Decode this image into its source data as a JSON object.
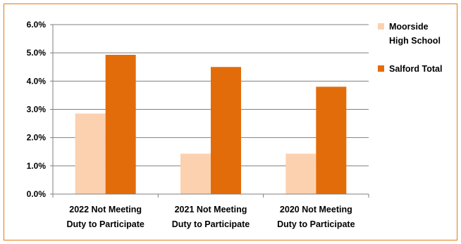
{
  "chart_data": {
    "type": "bar",
    "categories": [
      [
        "2022 Not Meeting",
        "Duty to Participate"
      ],
      [
        "2021 Not Meeting",
        "Duty to Participate"
      ],
      [
        "2020 Not Meeting",
        "Duty to Participate"
      ]
    ],
    "series": [
      {
        "name": [
          "Moorside",
          "High School"
        ],
        "color": "#fcd1b0",
        "values": [
          2.85,
          1.43,
          1.43
        ]
      },
      {
        "name": [
          "Salford Total"
        ],
        "color": "#e36c0a",
        "values": [
          4.93,
          4.5,
          3.8
        ]
      }
    ],
    "ylim": [
      0,
      6
    ],
    "yticks": [
      "0.0%",
      "1.0%",
      "2.0%",
      "3.0%",
      "4.0%",
      "5.0%",
      "6.0%"
    ],
    "grid": true,
    "legend_position": "right",
    "title": "",
    "xlabel": "",
    "ylabel": "",
    "colors": {
      "frame": "#e07b1a",
      "gridline": "#7f7f7f"
    }
  }
}
